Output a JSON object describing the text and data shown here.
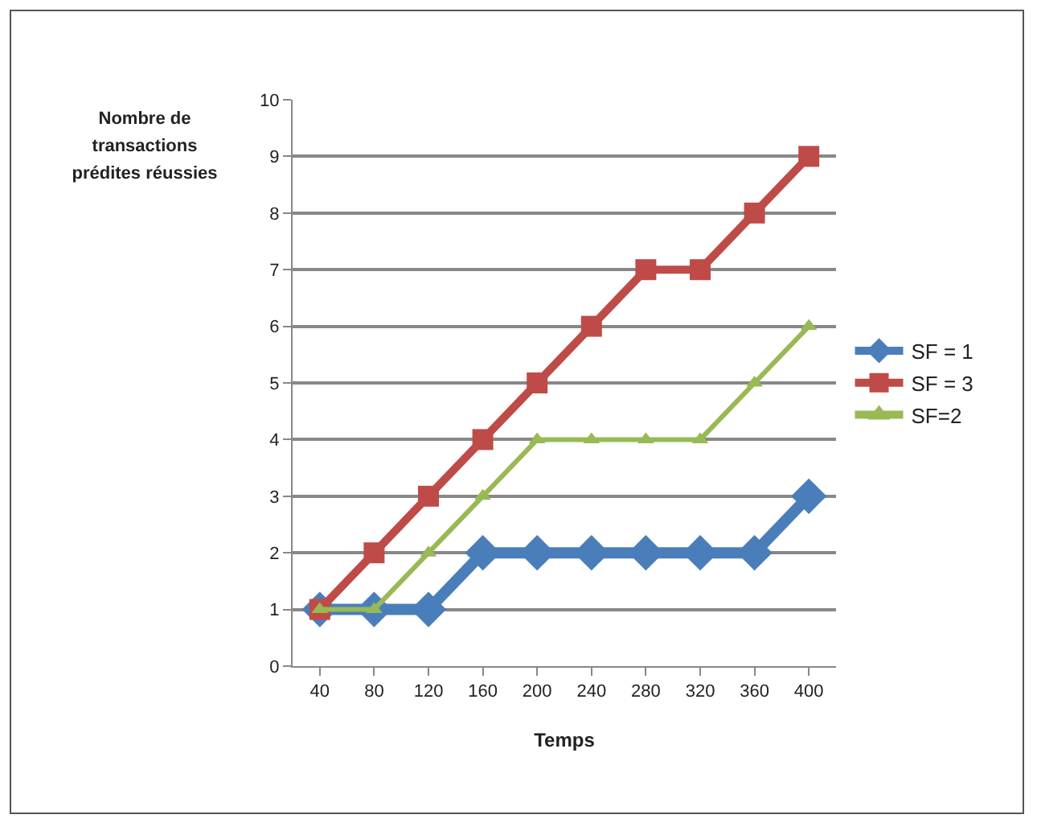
{
  "chart_data": {
    "type": "line",
    "xlabel": "Temps",
    "ylabel": "Nombre de transactions prédites réussies",
    "categories": [
      "40",
      "80",
      "120",
      "160",
      "200",
      "240",
      "280",
      "320",
      "360",
      "400"
    ],
    "series": [
      {
        "name": "SF = 1",
        "color": "#4a7ebb",
        "marker": "diamond",
        "values": [
          1,
          1,
          1,
          2,
          2,
          2,
          2,
          2,
          2,
          3
        ]
      },
      {
        "name": "SF = 3",
        "color": "#be4b48",
        "marker": "square",
        "values": [
          1,
          2,
          3,
          4,
          5,
          6,
          7,
          7,
          8,
          9
        ]
      },
      {
        "name": "SF=2",
        "color": "#98b954",
        "marker": "triangle",
        "values": [
          1,
          1,
          2,
          3,
          4,
          4,
          4,
          4,
          5,
          6
        ]
      }
    ],
    "ylim": [
      0,
      10
    ],
    "yticks": [
      0,
      1,
      2,
      3,
      4,
      5,
      6,
      7,
      8,
      9,
      10
    ],
    "grid": "y",
    "legend": "right",
    "line_style": "solid"
  }
}
